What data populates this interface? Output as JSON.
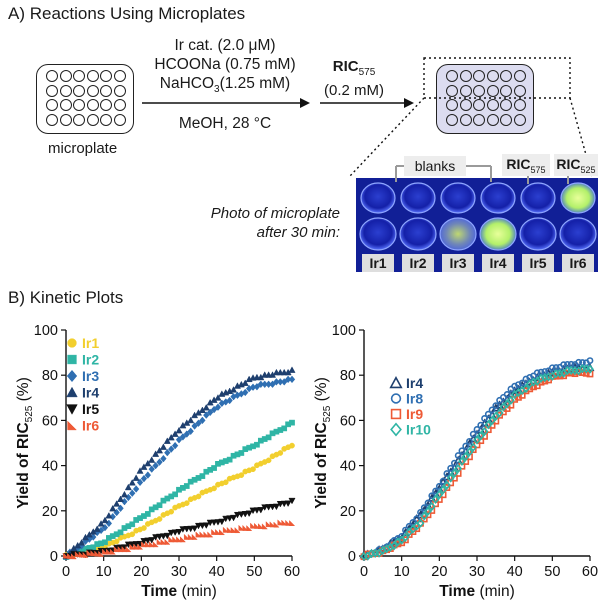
{
  "sectionA": {
    "title": "A) Reactions Using Microplates",
    "microplate_label": "microplate",
    "conditions": {
      "line1": "Ir cat. (2.0 μM)",
      "line2": "HCOONa (0.75 mM)",
      "line3_pre": "NaHCO",
      "line3_sub": "3",
      "line3_post": "(1.25 mM)",
      "below": "MeOH, 28 °C"
    },
    "ric": {
      "name": "RIC",
      "sub": "575",
      "conc": "(0.2 mM)"
    },
    "photo_caption_1": "Photo of microplate",
    "photo_caption_2": "after 30 min:",
    "photo": {
      "blanks_label": "blanks",
      "ric575_name": "RIC",
      "ric575_sub": "575",
      "ric525_name": "RIC",
      "ric525_sub": "525",
      "lanes": [
        "Ir1",
        "Ir2",
        "Ir3",
        "Ir4",
        "Ir5",
        "Ir6"
      ]
    }
  },
  "sectionB": {
    "title": "B) Kinetic Plots"
  },
  "chart_data": [
    {
      "type": "scatter",
      "xlabel": "Time (min)",
      "ylabel_pre": "Yield of RIC",
      "ylabel_sub": "525",
      "ylabel_post": "(%)",
      "xlim": [
        0,
        60
      ],
      "ylim": [
        0,
        100
      ],
      "xticks": [
        0,
        10,
        20,
        30,
        40,
        50,
        60
      ],
      "yticks": [
        0,
        20,
        40,
        60,
        80,
        100
      ],
      "legend_position": "top-left",
      "series": [
        {
          "name": "Ir1",
          "marker": "circle-filled",
          "color": "#f2cf2e",
          "x": [
            0,
            10,
            20,
            30,
            40,
            50,
            60
          ],
          "y": [
            0,
            4,
            12,
            22,
            31,
            39,
            49
          ]
        },
        {
          "name": "Ir2",
          "marker": "square-filled",
          "color": "#2fb5a5",
          "x": [
            0,
            10,
            20,
            30,
            40,
            50,
            60
          ],
          "y": [
            0,
            6,
            17,
            29,
            40,
            49,
            59
          ]
        },
        {
          "name": "Ir3",
          "marker": "diamond-filled",
          "color": "#2f6fb2",
          "x": [
            0,
            10,
            20,
            30,
            40,
            50,
            60
          ],
          "y": [
            0,
            12,
            33,
            51,
            66,
            75,
            78
          ]
        },
        {
          "name": "Ir4",
          "marker": "triangle-up-filled",
          "color": "#1e3f6e",
          "x": [
            0,
            10,
            20,
            30,
            40,
            50,
            60
          ],
          "y": [
            0,
            15,
            38,
            56,
            70,
            79,
            82
          ]
        },
        {
          "name": "Ir5",
          "marker": "triangle-down-filled",
          "color": "#111111",
          "x": [
            0,
            10,
            20,
            30,
            40,
            50,
            60
          ],
          "y": [
            0,
            2,
            6,
            11,
            15,
            20,
            24
          ]
        },
        {
          "name": "Ir6",
          "marker": "triangle-corner-filled",
          "color": "#ee5a36",
          "x": [
            0,
            10,
            20,
            30,
            40,
            50,
            60
          ],
          "y": [
            0,
            1.5,
            4.5,
            7.5,
            10.5,
            13,
            15
          ]
        }
      ]
    },
    {
      "type": "scatter",
      "xlabel": "Time (min)",
      "ylabel_pre": "Yield of RIC",
      "ylabel_sub": "525",
      "ylabel_post": "(%)",
      "xlim": [
        0,
        60
      ],
      "ylim": [
        0,
        100
      ],
      "xticks": [
        0,
        10,
        20,
        30,
        40,
        50,
        60
      ],
      "yticks": [
        0,
        20,
        40,
        60,
        80,
        100
      ],
      "legend_position": "top-left",
      "series": [
        {
          "name": "Ir4",
          "marker": "triangle-up-open",
          "color": "#1e3f6e",
          "x": [
            0,
            5,
            10,
            15,
            20,
            25,
            30,
            35,
            40,
            45,
            50,
            55,
            60
          ],
          "y": [
            0,
            3,
            8,
            18,
            30,
            42,
            54,
            65,
            73,
            78,
            81,
            83,
            83
          ]
        },
        {
          "name": "Ir8",
          "marker": "circle-open",
          "color": "#2f6fb2",
          "x": [
            0,
            5,
            10,
            15,
            20,
            25,
            30,
            35,
            40,
            45,
            50,
            55,
            60
          ],
          "y": [
            0,
            3,
            9,
            19,
            31,
            44,
            56,
            67,
            75,
            80,
            83,
            85,
            86
          ]
        },
        {
          "name": "Ir9",
          "marker": "square-open",
          "color": "#ee5a36",
          "x": [
            0,
            5,
            10,
            15,
            20,
            25,
            30,
            35,
            40,
            45,
            50,
            55,
            60
          ],
          "y": [
            0,
            2,
            6,
            14,
            25,
            37,
            49,
            60,
            69,
            75,
            79,
            81,
            81
          ]
        },
        {
          "name": "Ir10",
          "marker": "diamond-open",
          "color": "#2fb5a5",
          "x": [
            0,
            5,
            10,
            15,
            20,
            25,
            30,
            35,
            40,
            45,
            50,
            55,
            60
          ],
          "y": [
            0,
            2,
            7,
            15,
            27,
            39,
            51,
            62,
            71,
            77,
            80,
            82,
            83
          ]
        }
      ]
    }
  ]
}
